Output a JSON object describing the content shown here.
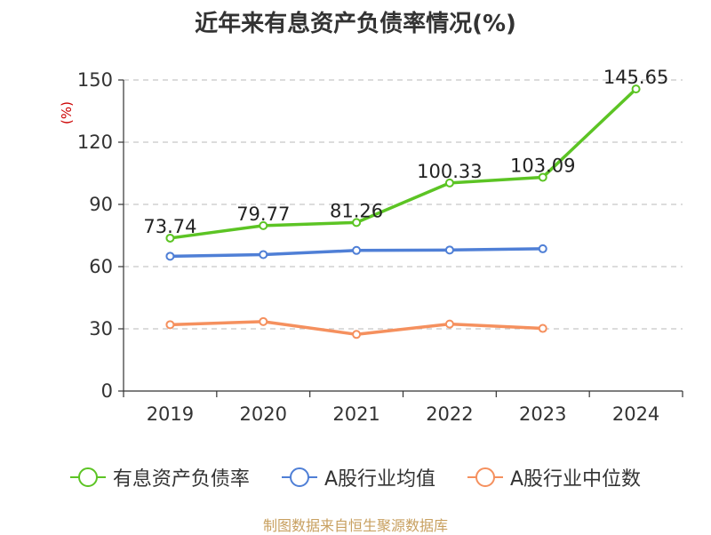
{
  "title": "近年来有息资产负债率情况(%)",
  "source": "制图数据来自恒生聚源数据库",
  "chart_data": {
    "type": "line",
    "categories": [
      "2019",
      "2020",
      "2021",
      "2022",
      "2023",
      "2024"
    ],
    "ylabel": "(%)",
    "ylim": [
      0,
      150
    ],
    "yticks": [
      0,
      30,
      60,
      90,
      120,
      150
    ],
    "grid": true,
    "legend_position": "bottom",
    "series": [
      {
        "name": "有息资产负债率",
        "color": "#5cc424",
        "values": [
          73.74,
          79.77,
          81.26,
          100.33,
          103.09,
          145.65
        ],
        "labels": [
          "73.74",
          "79.77",
          "81.26",
          "100.33",
          "103.09",
          "145.65"
        ]
      },
      {
        "name": "A股行业均值",
        "color": "#4f7fd6",
        "values": [
          65.0,
          65.8,
          67.8,
          68.0,
          68.6,
          null
        ]
      },
      {
        "name": "A股行业中位数",
        "color": "#f5905e",
        "values": [
          32.0,
          33.5,
          27.3,
          32.3,
          30.2,
          null
        ]
      }
    ]
  }
}
